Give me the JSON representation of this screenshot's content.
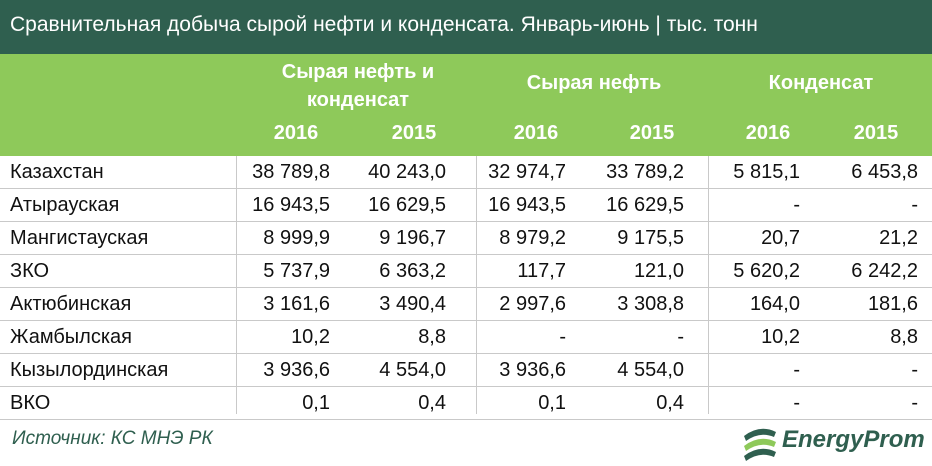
{
  "title": "Сравнительная добыча сырой нефти и конденсата. Январь-июнь | тыс. тонн",
  "groups": {
    "g1_line1": "Сырая нефть и",
    "g1_line2": "конденсат",
    "g2": "Сырая нефть",
    "g3": "Конденсат"
  },
  "years": [
    "2016",
    "2015",
    "2016",
    "2015",
    "2016",
    "2015"
  ],
  "rows": [
    {
      "name": "Казахстан",
      "values": [
        "38 789,8",
        "40 243,0",
        "32 974,7",
        "33 789,2",
        "5 815,1",
        "6 453,8"
      ]
    },
    {
      "name": "Атырауская",
      "values": [
        "16 943,5",
        "16 629,5",
        "16 943,5",
        "16 629,5",
        "-",
        "-"
      ]
    },
    {
      "name": "Мангистауская",
      "values": [
        "8 999,9",
        "9 196,7",
        "8 979,2",
        "9 175,5",
        "20,7",
        "21,2"
      ]
    },
    {
      "name": "ЗКО",
      "values": [
        "5 737,9",
        "6 363,2",
        "117,7",
        "121,0",
        "5 620,2",
        "6 242,2"
      ]
    },
    {
      "name": "Актюбинская",
      "values": [
        "3 161,6",
        "3 490,4",
        "2 997,6",
        "3 308,8",
        "164,0",
        "181,6"
      ]
    },
    {
      "name": "Жамбылская",
      "values": [
        "10,2",
        "8,8",
        "-",
        "-",
        "10,2",
        "8,8"
      ]
    },
    {
      "name": "Кызылординская",
      "values": [
        "3 936,6",
        "4 554,0",
        "3 936,6",
        "4 554,0",
        "-",
        "-"
      ]
    },
    {
      "name": "ВКО",
      "values": [
        "0,1",
        "0,4",
        "0,1",
        "0,4",
        "-",
        "-"
      ]
    }
  ],
  "source": "Источник: КС МНЭ РК",
  "logo_text": "EnergyProm",
  "colors": {
    "title_bg": "#2f5f4f",
    "header_bg": "#8ec95a",
    "text": "#111111"
  }
}
